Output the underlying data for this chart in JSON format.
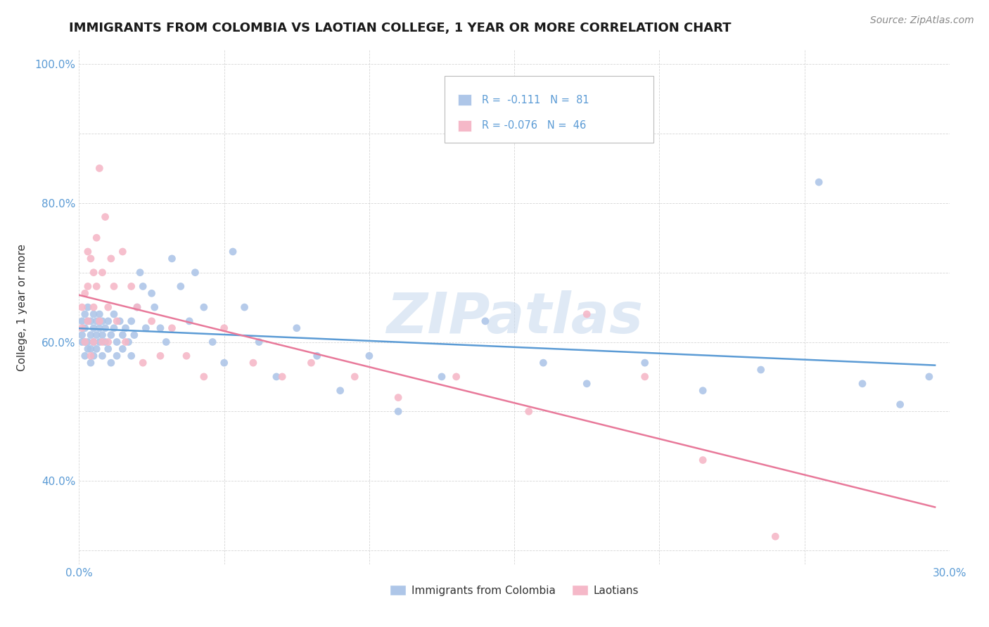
{
  "title": "IMMIGRANTS FROM COLOMBIA VS LAOTIAN COLLEGE, 1 YEAR OR MORE CORRELATION CHART",
  "source_text": "Source: ZipAtlas.com",
  "ylabel": "College, 1 year or more",
  "xlim": [
    0.0,
    0.3
  ],
  "ylim": [
    0.28,
    1.02
  ],
  "xtick_positions": [
    0.0,
    0.05,
    0.1,
    0.15,
    0.2,
    0.25,
    0.3
  ],
  "xticklabels": [
    "0.0%",
    "",
    "",
    "",
    "",
    "",
    "30.0%"
  ],
  "ytick_positions": [
    0.3,
    0.4,
    0.5,
    0.6,
    0.7,
    0.8,
    0.9,
    1.0
  ],
  "yticklabels": [
    "",
    "40.0%",
    "",
    "60.0%",
    "",
    "80.0%",
    "",
    "100.0%"
  ],
  "watermark": "ZIPatlas",
  "colombia_color": "#aec6e8",
  "laotian_color": "#f5b8c8",
  "colombia_line_color": "#5b9bd5",
  "laotian_line_color": "#e8799a",
  "colombia_R": -0.111,
  "colombia_N": 81,
  "laotian_R": -0.076,
  "laotian_N": 46,
  "tick_color": "#5b9bd5",
  "title_color": "#1a1a1a",
  "source_color": "#888888",
  "ylabel_color": "#333333",
  "grid_color": "#cccccc",
  "legend_text_color": "#333333",
  "legend_r_color": "#5b9bd5"
}
